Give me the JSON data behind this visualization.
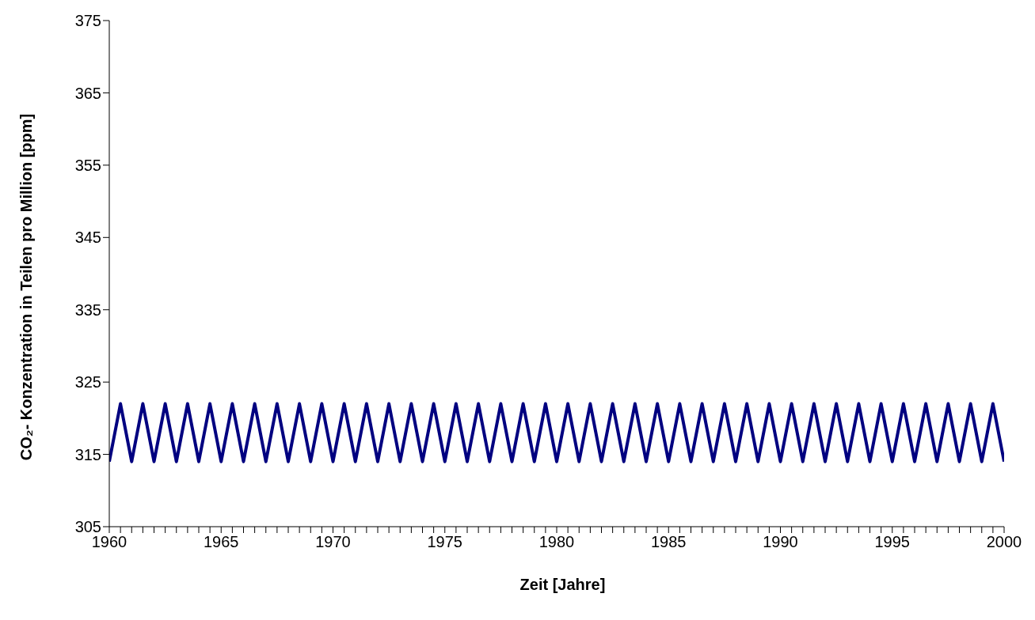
{
  "chart_data": {
    "type": "line",
    "xlabel": "Zeit [Jahre]",
    "ylabel": "CO₂- Konzentration in Teilen pro Million [ppm]",
    "x": [
      1960,
      1960.5,
      1961,
      1961.5,
      1962,
      1962.5,
      1963,
      1963.5,
      1964,
      1964.5,
      1965,
      1965.5,
      1966,
      1966.5,
      1967,
      1967.5,
      1968,
      1968.5,
      1969,
      1969.5,
      1970,
      1970.5,
      1971,
      1971.5,
      1972,
      1972.5,
      1973,
      1973.5,
      1974,
      1974.5,
      1975,
      1975.5,
      1976,
      1976.5,
      1977,
      1977.5,
      1978,
      1978.5,
      1979,
      1979.5,
      1980,
      1980.5,
      1981,
      1981.5,
      1982,
      1982.5,
      1983,
      1983.5,
      1984,
      1984.5,
      1985,
      1985.5,
      1986,
      1986.5,
      1987,
      1987.5,
      1988,
      1988.5,
      1989,
      1989.5,
      1990,
      1990.5,
      1991,
      1991.5,
      1992,
      1992.5,
      1993,
      1993.5,
      1994,
      1994.5,
      1995,
      1995.5,
      1996,
      1996.5,
      1997,
      1997.5,
      1998,
      1998.5,
      1999,
      1999.5,
      2000
    ],
    "series": [
      {
        "color": "#000080",
        "values": [
          314,
          322,
          314,
          322,
          314,
          322,
          314,
          322,
          314,
          322,
          314,
          322,
          314,
          322,
          314,
          322,
          314,
          322,
          314,
          322,
          314,
          322,
          314,
          322,
          314,
          322,
          314,
          322,
          314,
          322,
          314,
          322,
          314,
          322,
          314,
          322,
          314,
          322,
          314,
          322,
          314,
          322,
          314,
          322,
          314,
          322,
          314,
          322,
          314,
          322,
          314,
          322,
          314,
          322,
          314,
          322,
          314,
          322,
          314,
          322,
          314,
          322,
          314,
          322,
          314,
          322,
          314,
          322,
          314,
          322,
          314,
          322,
          314,
          322,
          314,
          322,
          314,
          322,
          314,
          322,
          314
        ]
      }
    ],
    "xlim": [
      1960,
      2000
    ],
    "xticks": [
      1960,
      {
        "value": 1960.5,
        "label": null
      },
      {
        "value": 1961,
        "label": null
      },
      {
        "value": 1961.5,
        "label": null
      },
      {
        "value": 1962,
        "label": null
      },
      {
        "value": 1962.5,
        "label": null
      },
      {
        "value": 1963,
        "label": null
      },
      {
        "value": 1963.5,
        "label": null
      },
      {
        "value": 1964,
        "label": null
      },
      {
        "value": 1964.5,
        "label": null
      },
      1965,
      {
        "value": 1965.5,
        "label": null
      },
      {
        "value": 1966,
        "label": null
      },
      {
        "value": 1966.5,
        "label": null
      },
      {
        "value": 1967,
        "label": null
      },
      {
        "value": 1967.5,
        "label": null
      },
      {
        "value": 1968,
        "label": null
      },
      {
        "value": 1968.5,
        "label": null
      },
      {
        "value": 1969,
        "label": null
      },
      {
        "value": 1969.5,
        "label": null
      },
      1970,
      {
        "value": 1970.5,
        "label": null
      },
      {
        "value": 1971,
        "label": null
      },
      {
        "value": 1971.5,
        "label": null
      },
      {
        "value": 1972,
        "label": null
      },
      {
        "value": 1972.5,
        "label": null
      },
      {
        "value": 1973,
        "label": null
      },
      {
        "value": 1973.5,
        "label": null
      },
      {
        "value": 1974,
        "label": null
      },
      {
        "value": 1974.5,
        "label": null
      },
      1975,
      {
        "value": 1975.5,
        "label": null
      },
      {
        "value": 1976,
        "label": null
      },
      {
        "value": 1976.5,
        "label": null
      },
      {
        "value": 1977,
        "label": null
      },
      {
        "value": 1977.5,
        "label": null
      },
      {
        "value": 1978,
        "label": null
      },
      {
        "value": 1978.5,
        "label": null
      },
      {
        "value": 1979,
        "label": null
      },
      {
        "value": 1979.5,
        "label": null
      },
      1980,
      {
        "value": 1980.5,
        "label": null
      },
      {
        "value": 1981,
        "label": null
      },
      {
        "value": 1981.5,
        "label": null
      },
      {
        "value": 1982,
        "label": null
      },
      {
        "value": 1982.5,
        "label": null
      },
      {
        "value": 1983,
        "label": null
      },
      {
        "value": 1983.5,
        "label": null
      },
      {
        "value": 1984,
        "label": null
      },
      {
        "value": 1984.5,
        "label": null
      },
      1985,
      {
        "value": 1985.5,
        "label": null
      },
      {
        "value": 1986,
        "label": null
      },
      {
        "value": 1986.5,
        "label": null
      },
      {
        "value": 1987,
        "label": null
      },
      {
        "value": 1987.5,
        "label": null
      },
      {
        "value": 1988,
        "label": null
      },
      {
        "value": 1988.5,
        "label": null
      },
      {
        "value": 1989,
        "label": null
      },
      {
        "value": 1989.5,
        "label": null
      },
      1990,
      {
        "value": 1990.5,
        "label": null
      },
      {
        "value": 1991,
        "label": null
      },
      {
        "value": 1991.5,
        "label": null
      },
      {
        "value": 1992,
        "label": null
      },
      {
        "value": 1992.5,
        "label": null
      },
      {
        "value": 1993,
        "label": null
      },
      {
        "value": 1993.5,
        "label": null
      },
      {
        "value": 1994,
        "label": null
      },
      {
        "value": 1994.5,
        "label": null
      },
      1995,
      {
        "value": 1995.5,
        "label": null
      },
      {
        "value": 1996,
        "label": null
      },
      {
        "value": 1996.5,
        "label": null
      },
      {
        "value": 1997,
        "label": null
      },
      {
        "value": 1997.5,
        "label": null
      },
      {
        "value": 1998,
        "label": null
      },
      {
        "value": 1998.5,
        "label": null
      },
      {
        "value": 1999,
        "label": null
      },
      {
        "value": 1999.5,
        "label": null
      },
      2000
    ],
    "ylim": [
      305,
      375
    ],
    "yticks": [
      305,
      315,
      325,
      335,
      345,
      355,
      365,
      375
    ],
    "grid": false,
    "legend": false,
    "marker": "none",
    "line_style": "solid"
  }
}
